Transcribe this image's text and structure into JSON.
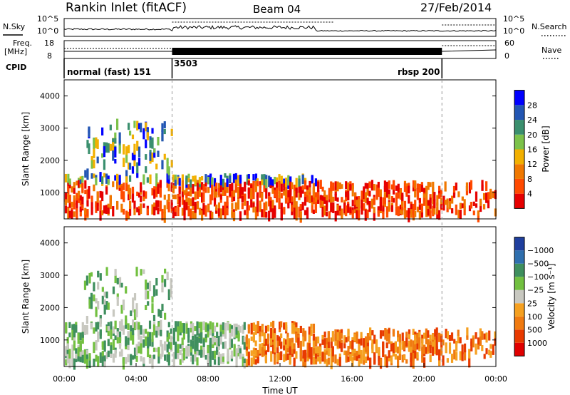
{
  "header": {
    "title": "Rankin Inlet (fitACF)",
    "beam": "Beam 04",
    "date": "27/Feb/2014"
  },
  "status_panels": {
    "nsky_label": "N.Sky",
    "nsearch_label": "N.Search",
    "noise_ticks": [
      "10^5",
      "10^0"
    ],
    "freq_label_1": "Freq.",
    "freq_label_2": "[MHz]",
    "freq_ticks": [
      "18",
      "8"
    ],
    "nave_label": "Nave",
    "nave_ticks": [
      "60",
      "0"
    ],
    "cpid_label": "CPID",
    "modes": [
      {
        "name": "normal (fast) 151",
        "start_h": 0,
        "end_h": 6
      },
      {
        "name": "3503",
        "start_h": 6,
        "end_h": 21
      },
      {
        "name": "rbsp 200",
        "start_h": 21,
        "end_h": 24
      }
    ]
  },
  "chart_data": [
    {
      "type": "heatmap",
      "quantity": "power",
      "ylabel": "Slant Range [km]",
      "yticks": [
        1000,
        2000,
        3000,
        4000
      ],
      "ylim": [
        180,
        4500
      ],
      "xlim_hours": [
        0,
        24
      ],
      "colorbar": {
        "label": "Power [dB]",
        "ticks": [
          "4",
          "8",
          "12",
          "16",
          "20",
          "24",
          "28"
        ],
        "colors": [
          "#0000ff",
          "#2356b3",
          "#3a8f6e",
          "#7cc24a",
          "#f2b000",
          "#f07800",
          "#ff4a00",
          "#e60000"
        ]
      }
    },
    {
      "type": "heatmap",
      "quantity": "velocity",
      "ylabel": "Slant Range [km]",
      "yticks": [
        1000,
        2000,
        3000,
        4000
      ],
      "ylim": [
        180,
        4500
      ],
      "xlim_hours": [
        0,
        24
      ],
      "xlabel": "Time UT",
      "xticks": [
        "00:00",
        "04:00",
        "08:00",
        "12:00",
        "16:00",
        "20:00",
        "00:00"
      ],
      "colorbar": {
        "label": "Velocity [m s⁻¹]",
        "ticks": [
          "1000",
          "500",
          "100",
          "25",
          "−25",
          "−100",
          "−500",
          "−1000"
        ],
        "colors": [
          "#1f3f9e",
          "#2f6fae",
          "#3f8f5e",
          "#72c040",
          "#c8c8c0",
          "#f5a020",
          "#f07a10",
          "#e83a00",
          "#e00000"
        ]
      }
    }
  ]
}
